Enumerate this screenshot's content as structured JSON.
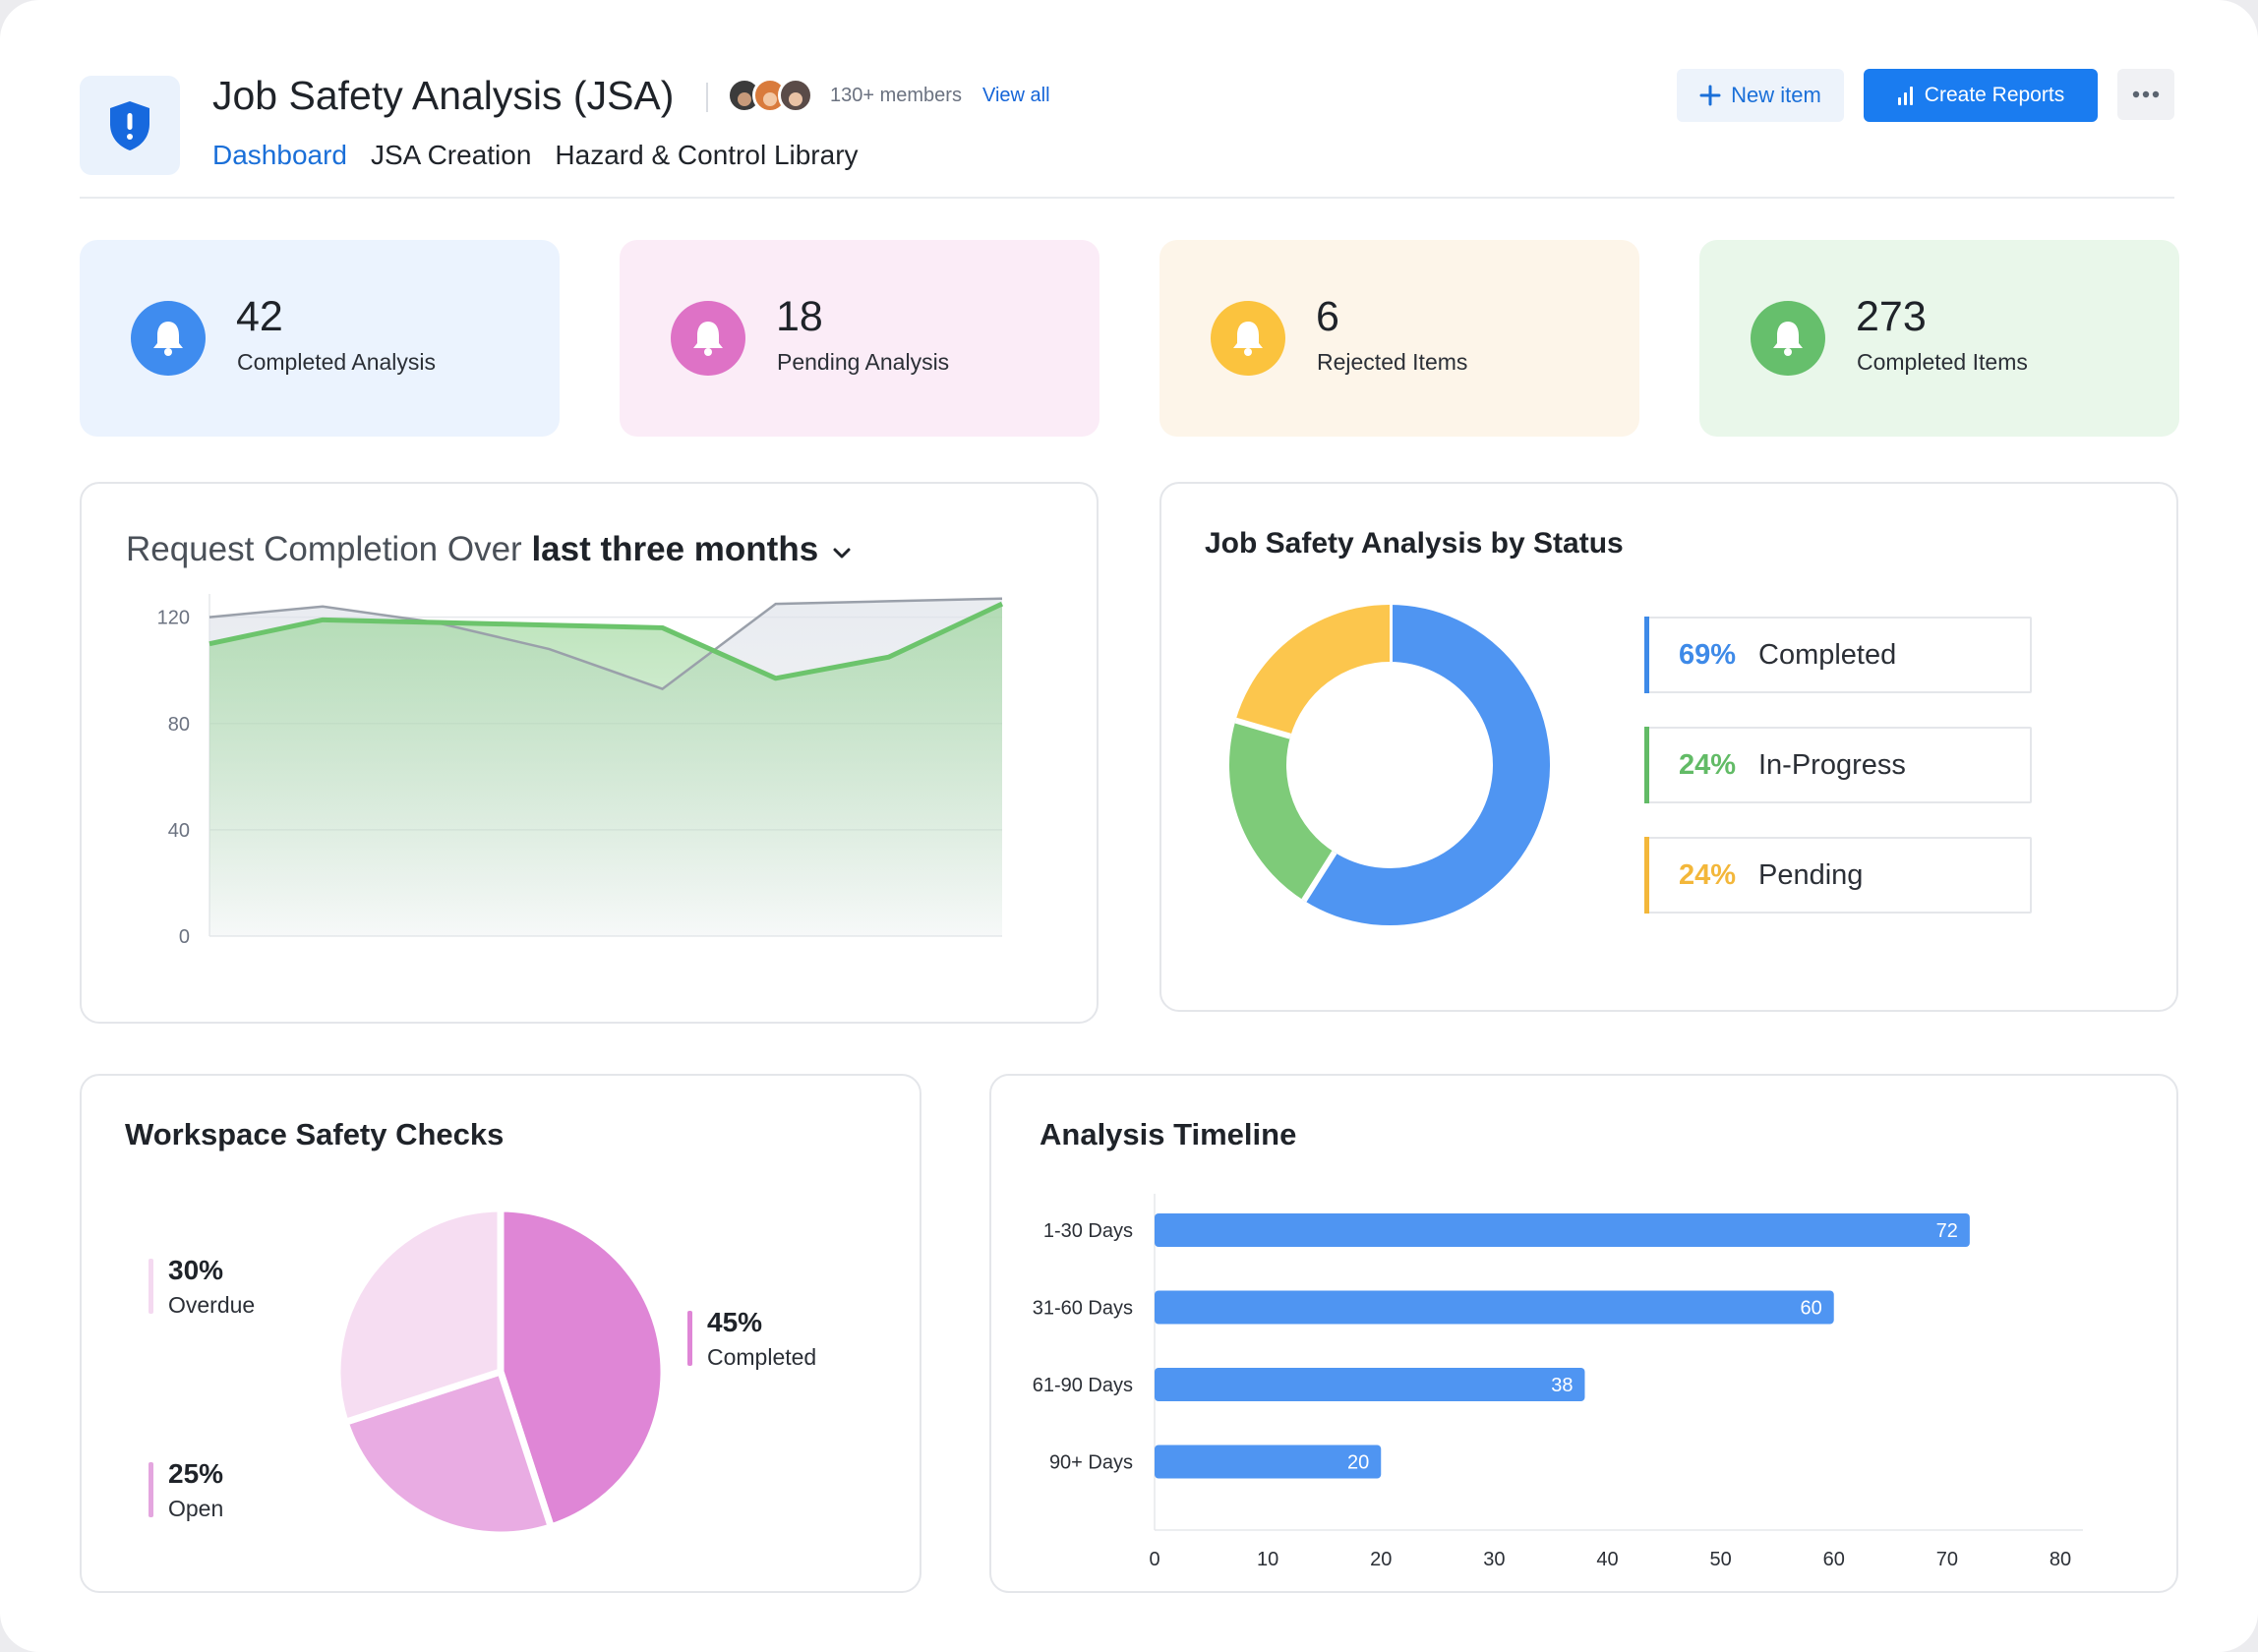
{
  "header": {
    "title": "Job Safety Analysis (JSA)",
    "members": "130+ members",
    "view_all": "View all",
    "tabs": [
      {
        "label": "Dashboard",
        "active": true
      },
      {
        "label": "JSA Creation",
        "active": false
      },
      {
        "label": "Hazard & Control Library",
        "active": false
      }
    ],
    "new_item_label": "New item",
    "create_reports_label": "Create Reports",
    "icons": {
      "logo": "shield-alert-icon",
      "new": "plus-icon",
      "reports": "bar-chart-icon",
      "more": "more-horizontal-icon"
    }
  },
  "stats": [
    {
      "value": "42",
      "label": "Completed Analysis",
      "bg": "#ebf3fe",
      "icon_color": "#3f8cef",
      "icon": "bell-icon"
    },
    {
      "value": "18",
      "label": "Pending Analysis",
      "bg": "#fbecf7",
      "icon_color": "#de72c6",
      "icon": "bell-icon"
    },
    {
      "value": "6",
      "label": "Rejected Items",
      "bg": "#fdf5e9",
      "icon_color": "#fbc33e",
      "icon": "bell-icon"
    },
    {
      "value": "273",
      "label": "Completed Items",
      "bg": "#e9f7ea",
      "icon_color": "#66bf6c",
      "icon": "bell-icon"
    }
  ],
  "line_panel": {
    "title_a": "Request Completion Over",
    "title_b": "last three months"
  },
  "status_panel": {
    "title": "Job Safety Analysis by Status",
    "legend": [
      {
        "pct": "69%",
        "name": "Completed",
        "color": "#3e8ae8"
      },
      {
        "pct": "24%",
        "name": "In-Progress",
        "color": "#62bb66"
      },
      {
        "pct": "24%",
        "name": "Pending",
        "color": "#f3b73a"
      }
    ]
  },
  "checks_panel": {
    "title": "Workspace Safety Checks",
    "legend": [
      {
        "pct": "30%",
        "name": "Overdue",
        "color": "#f4d9f0"
      },
      {
        "pct": "25%",
        "name": "Open",
        "color": "#e4a6df"
      },
      {
        "pct": "45%",
        "name": "Completed",
        "color": "#df86d6"
      }
    ]
  },
  "timeline_panel": {
    "title": "Analysis Timeline"
  },
  "chart_data": [
    {
      "type": "area",
      "title": "Request Completion Over last three months",
      "y_ticks": [
        0,
        40,
        80,
        120
      ],
      "ylim": [
        0,
        128
      ],
      "grid": true,
      "series": [
        {
          "color": "#9aa0aa",
          "values": [
            120,
            124,
            118,
            108,
            93,
            125,
            126,
            127
          ]
        },
        {
          "color": "#6cc46c",
          "values": [
            110,
            119,
            118,
            117,
            116,
            97,
            105,
            125
          ]
        }
      ]
    },
    {
      "type": "pie",
      "title": "Job Safety Analysis by Status",
      "donut": true,
      "categories": [
        "Completed",
        "In-Progress",
        "Pending"
      ],
      "values": [
        69,
        24,
        24
      ],
      "colors": [
        "#4f95f2",
        "#7ecb79",
        "#fcc64d"
      ]
    },
    {
      "type": "pie",
      "title": "Workspace Safety Checks",
      "categories": [
        "Completed",
        "Open",
        "Overdue"
      ],
      "values": [
        45,
        25,
        30
      ],
      "colors": [
        "#df86d6",
        "#e9ace3",
        "#f6ddf2"
      ]
    },
    {
      "type": "bar",
      "orientation": "horizontal",
      "title": "Analysis Timeline",
      "categories": [
        "1-30 Days",
        "31-60 Days",
        "61-90 Days",
        "90+ Days"
      ],
      "values": [
        72,
        60,
        38,
        20
      ],
      "x_ticks": [
        0,
        10,
        20,
        30,
        40,
        50,
        60,
        70,
        80
      ],
      "xlim": [
        0,
        82
      ],
      "color": "#4f95f2"
    }
  ]
}
